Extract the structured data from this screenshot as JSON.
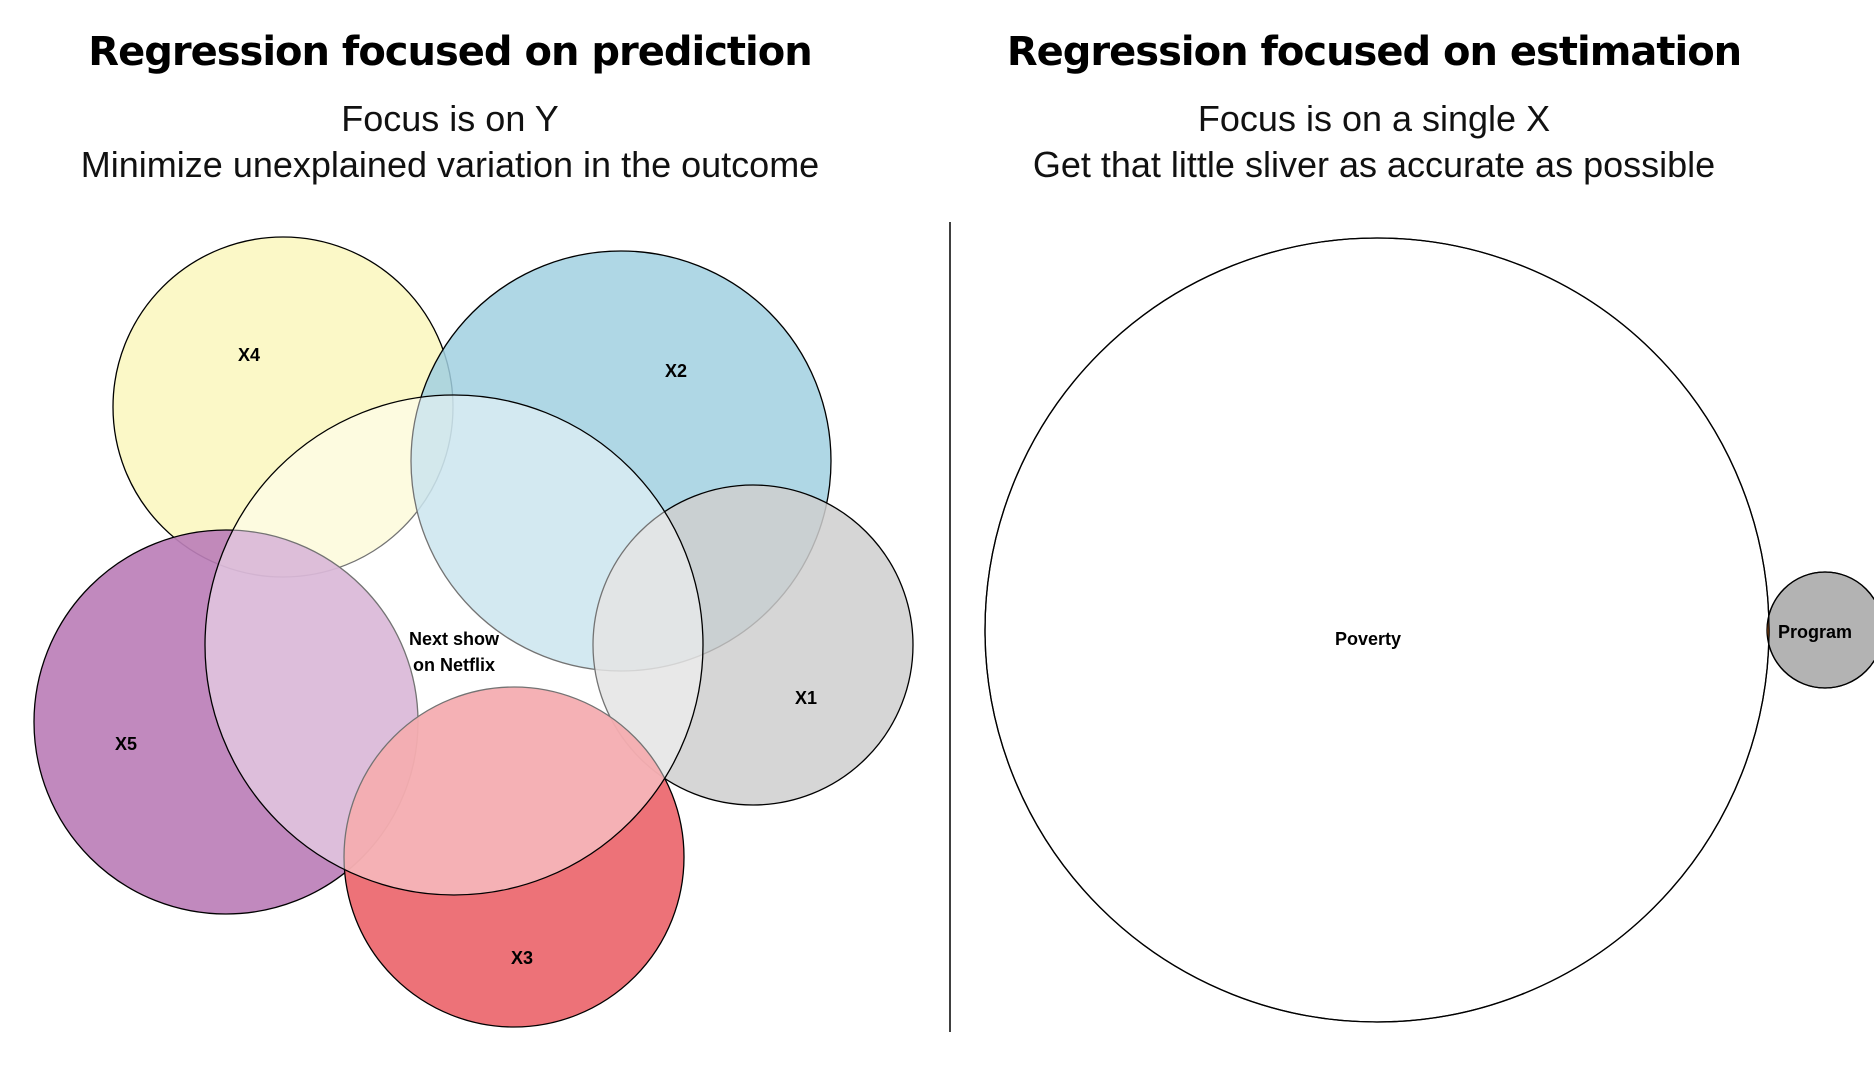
{
  "left_panel": {
    "title": "Regression focused on prediction",
    "subtitle_line1": "Focus is on Y",
    "subtitle_line2": "Minimize unexplained variation in the outcome",
    "circles": {
      "x4": {
        "label": "X4",
        "color": "#FBF7C1"
      },
      "x2": {
        "label": "X2",
        "color": "#A1D0E1"
      },
      "x1": {
        "label": "X1",
        "color": "#CFCFCF"
      },
      "x5": {
        "label": "X5",
        "color": "#BC7FB9"
      },
      "x3": {
        "label": "X3",
        "color": "#EC6A71"
      },
      "outcome": {
        "label_line1": "Next show",
        "label_line2": "on Netflix",
        "color": "#FFFFFF"
      }
    }
  },
  "right_panel": {
    "title": "Regression focused on estimation",
    "subtitle_line1": "Focus is on a single X",
    "subtitle_line2": "Get that little sliver as accurate as possible",
    "circles": {
      "poverty": {
        "label": "Poverty",
        "color": "#FFFFFF"
      },
      "program": {
        "label": "Program",
        "color": "#B3B3B3"
      },
      "overlap": {
        "color": "#F07A22"
      }
    }
  }
}
